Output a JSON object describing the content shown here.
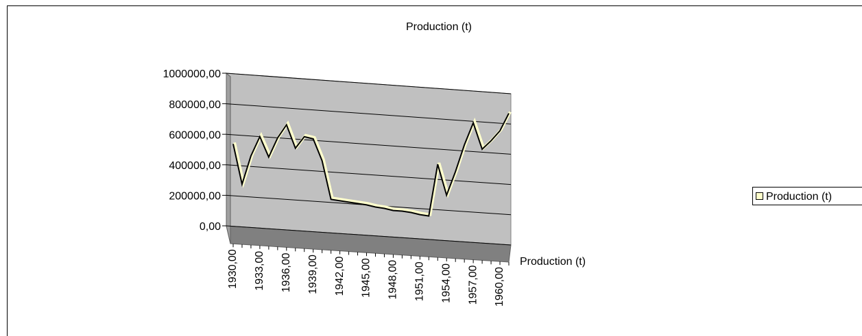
{
  "chart_data": {
    "type": "line3d",
    "title": "Production (t)",
    "depth_axis_label": "Production (t)",
    "x": [
      1930,
      1931,
      1932,
      1933,
      1934,
      1935,
      1936,
      1937,
      1938,
      1939,
      1940,
      1941,
      1942,
      1943,
      1944,
      1945,
      1946,
      1947,
      1948,
      1949,
      1950,
      1951,
      1952,
      1953,
      1954,
      1955,
      1956,
      1957,
      1958,
      1959,
      1960,
      1961
    ],
    "xlim": [
      1930,
      1961
    ],
    "xticks": [
      {
        "value": 1930,
        "label": "1930,00"
      },
      {
        "value": 1933,
        "label": "1933,00"
      },
      {
        "value": 1936,
        "label": "1936,00"
      },
      {
        "value": 1939,
        "label": "1939,00"
      },
      {
        "value": 1942,
        "label": "1942,00"
      },
      {
        "value": 1945,
        "label": "1945,00"
      },
      {
        "value": 1948,
        "label": "1948,00"
      },
      {
        "value": 1951,
        "label": "1951,00"
      },
      {
        "value": 1954,
        "label": "1954,00"
      },
      {
        "value": 1957,
        "label": "1957,00"
      },
      {
        "value": 1960,
        "label": "1960,00"
      }
    ],
    "series": [
      {
        "name": "Production (t)",
        "color": "#000000",
        "values": [
          540000,
          280000,
          470000,
          600000,
          470000,
          600000,
          690000,
          540000,
          620000,
          610000,
          470000,
          220000,
          215000,
          210000,
          205000,
          200000,
          190000,
          185000,
          175000,
          175000,
          170000,
          160000,
          155000,
          500000,
          300000,
          460000,
          640000,
          790000,
          620000,
          680000,
          750000,
          870000
        ]
      }
    ],
    "ylim": [
      0,
      1000000
    ],
    "yticks": [
      {
        "value": 0,
        "label": "0,00"
      },
      {
        "value": 200000,
        "label": "200000,00"
      },
      {
        "value": 400000,
        "label": "400000,00"
      },
      {
        "value": 600000,
        "label": "600000,00"
      },
      {
        "value": 800000,
        "label": "800000,00"
      },
      {
        "value": 1000000,
        "label": "1000000,00"
      }
    ],
    "grid": true,
    "legend": "right"
  }
}
